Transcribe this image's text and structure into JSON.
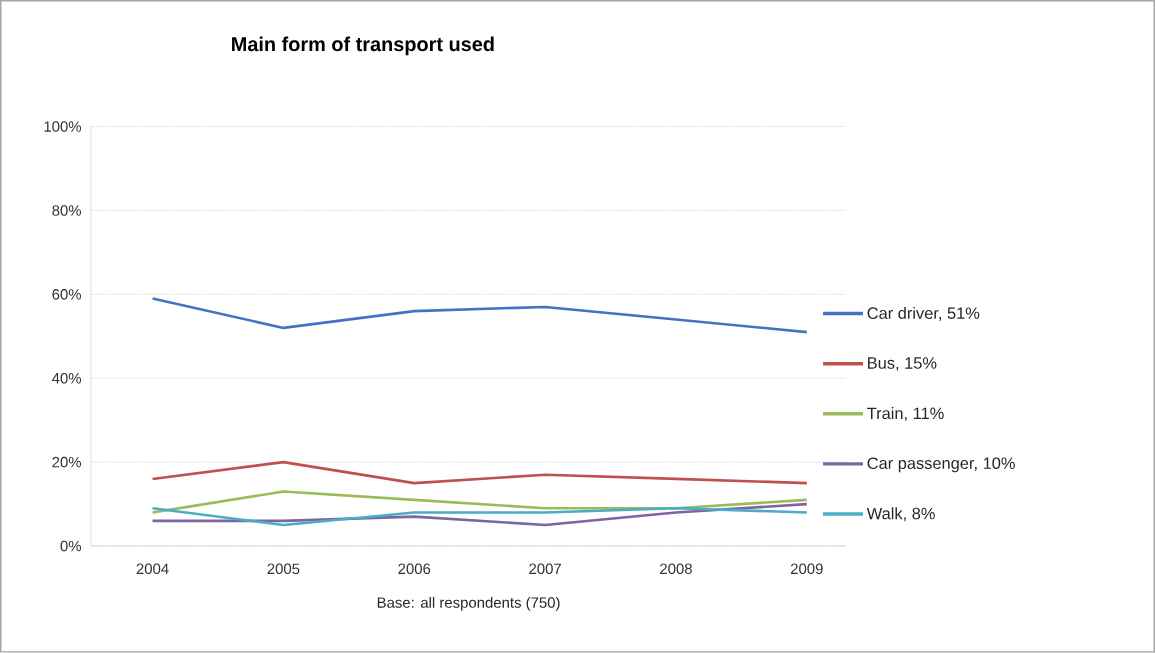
{
  "chart_data": {
    "type": "line",
    "title": "Main form of transport used",
    "xlabel": "Base: all respondents (750)",
    "categories": [
      "2004",
      "2005",
      "2006",
      "2007",
      "2008",
      "2009"
    ],
    "series": [
      {
        "name": "Car driver, 51%",
        "color": "#4472c4",
        "values": [
          59,
          52,
          56,
          57,
          54,
          51
        ]
      },
      {
        "name": "Bus, 15%",
        "color": "#c0504d",
        "values": [
          16,
          20,
          15,
          17,
          16,
          15
        ]
      },
      {
        "name": "Train, 11%",
        "color": "#9bbb59",
        "values": [
          8,
          13,
          11,
          9,
          9,
          11
        ]
      },
      {
        "name": "Car passenger, 10%",
        "color": "#8064a2",
        "values": [
          6,
          6,
          7,
          5,
          8,
          10
        ]
      },
      {
        "name": "Walk, 8%",
        "color": "#4bacc6",
        "values": [
          9,
          5,
          8,
          8,
          9,
          8
        ]
      }
    ],
    "ylim": [
      0,
      100
    ],
    "yticks": [
      {
        "value": 0,
        "label": "0%"
      },
      {
        "value": 20,
        "label": "20%"
      },
      {
        "value": 40,
        "label": "40%"
      },
      {
        "value": 60,
        "label": "60%"
      },
      {
        "value": 80,
        "label": "80%"
      },
      {
        "value": 100,
        "label": "100%"
      }
    ],
    "grid": "y",
    "legend": "right",
    "marker": "none",
    "line_style": "solid"
  }
}
